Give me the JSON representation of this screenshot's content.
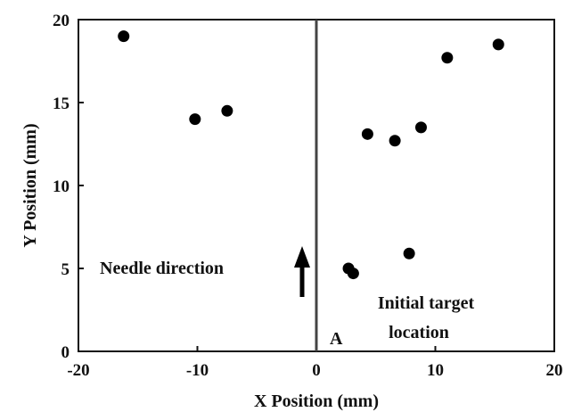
{
  "chart_data": {
    "type": "scatter",
    "title": "",
    "xlabel": "X Position (mm)",
    "ylabel": "Y Position (mm)",
    "xlim": [
      -20,
      20
    ],
    "ylim": [
      0,
      20
    ],
    "x_ticks": [
      -20,
      -10,
      0,
      10,
      20
    ],
    "y_ticks": [
      0,
      5,
      10,
      15,
      20
    ],
    "x_tick_labels": [
      "-20",
      "-10",
      "0",
      "10",
      "20"
    ],
    "y_tick_labels": [
      "0",
      "5",
      "10",
      "15",
      "20"
    ],
    "grid": false,
    "series": [
      {
        "marker_color": "#000000",
        "points": [
          {
            "x": -16.2,
            "y": 19.0
          },
          {
            "x": -10.2,
            "y": 14.0
          },
          {
            "x": -7.5,
            "y": 14.5
          },
          {
            "x": 4.3,
            "y": 13.1
          },
          {
            "x": 6.6,
            "y": 12.7
          },
          {
            "x": 8.8,
            "y": 13.5
          },
          {
            "x": 11.0,
            "y": 17.7
          },
          {
            "x": 15.3,
            "y": 18.5
          },
          {
            "x": 2.7,
            "y": 5.0
          },
          {
            "x": 3.1,
            "y": 4.7
          },
          {
            "x": 7.8,
            "y": 5.9
          }
        ]
      }
    ],
    "vertical_reference_line_x": 0,
    "annotations": {
      "needle_direction": "Needle direction",
      "initial_target_line1": "Initial target",
      "initial_target_line2": "location",
      "label_a": "A"
    }
  }
}
